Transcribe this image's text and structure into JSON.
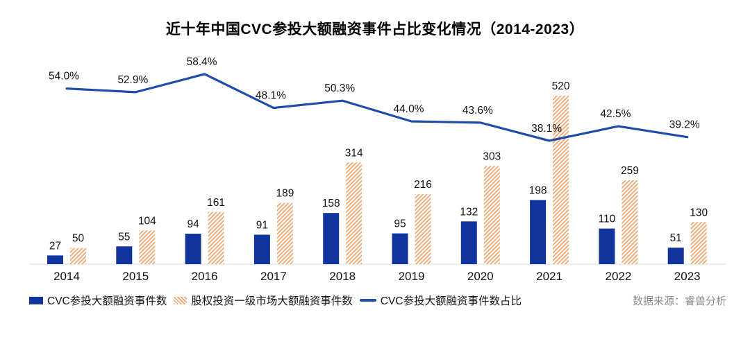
{
  "chart_data": {
    "type": "bar",
    "title": "近十年中国CVC参投大额融资事件占比变化情况（2014-2023）",
    "categories": [
      "2014",
      "2015",
      "2016",
      "2017",
      "2018",
      "2019",
      "2020",
      "2021",
      "2022",
      "2023"
    ],
    "series": [
      {
        "name": "CVC参投大额融资事件数",
        "type": "bar",
        "color": "#12349E",
        "values": [
          27,
          55,
          94,
          91,
          158,
          95,
          132,
          198,
          110,
          51
        ]
      },
      {
        "name": "股权投资一级市场大额融资事件数",
        "type": "bar",
        "style": "hatched-diagonal",
        "color": "#F0A26B",
        "values": [
          50,
          104,
          161,
          189,
          314,
          216,
          303,
          520,
          259,
          130
        ]
      },
      {
        "name": "CVC参投大额融资事件数占比",
        "type": "line",
        "color": "#1F4BAC",
        "unit": "%",
        "values": [
          54.0,
          52.9,
          58.4,
          48.1,
          50.3,
          44.0,
          43.6,
          38.1,
          42.5,
          39.2
        ],
        "labels": [
          "54.0%",
          "52.9%",
          "58.4%",
          "48.1%",
          "50.3%",
          "44.0%",
          "43.6%",
          "38.1%",
          "42.5%",
          "39.2%"
        ]
      }
    ],
    "ylim_bars": [
      0,
      520
    ],
    "grid": false,
    "legend_position": "bottom-left",
    "source": "数据来源：睿兽分析",
    "colors": {
      "bar_blue": "#12349E",
      "hatch_orange": "#F0A26B",
      "line_blue": "#1F4BAC",
      "axis_line": "#D9D9D9",
      "label_text": "#111111",
      "source_text": "#8C8C8C"
    }
  }
}
